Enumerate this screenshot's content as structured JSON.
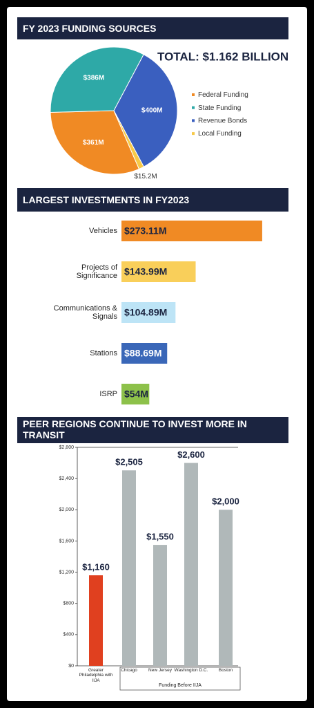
{
  "chart_data": [
    {
      "type": "pie",
      "title": "FY 2023 FUNDING SOURCES",
      "annotation": "TOTAL: $1.162 BILLION",
      "categories": [
        "Federal Funding",
        "State Funding",
        "Revenue Bonds",
        "Local Funding"
      ],
      "values": [
        361,
        386,
        400,
        15.2
      ],
      "value_labels": [
        "$361M",
        "$386M",
        "$400M",
        "$15.2M"
      ],
      "colors": [
        "#f08a24",
        "#2ea9a7",
        "#3a5fbf",
        "#f7c948"
      ]
    },
    {
      "type": "hbar",
      "title": "LARGEST INVESTMENTS IN FY2023",
      "categories": [
        "Vehicles",
        "Projects of Significance",
        "Communications & Signals",
        "Stations",
        "ISRP"
      ],
      "values": [
        273.11,
        143.99,
        104.89,
        88.69,
        54
      ],
      "value_labels": [
        "$273.11M",
        "$143.99M",
        "$104.89M",
        "$88.69M",
        "$54M"
      ],
      "colors": [
        "#f08a24",
        "#f9cf5a",
        "#bde4f6",
        "#3a67b8",
        "#8dc14a"
      ],
      "xlim": [
        0,
        300
      ]
    },
    {
      "type": "bar",
      "title": "PEER REGIONS CONTINUE TO INVEST MORE IN TRANSIT",
      "categories": [
        "Greater Philadelphia with IIJA",
        "Chicago",
        "New Jersey",
        "Washington D.C.",
        "Boston"
      ],
      "values": [
        1160,
        2505,
        1550,
        2600,
        2000
      ],
      "value_labels": [
        "$1,160",
        "$2,505",
        "$1,550",
        "$2,600",
        "$2,000"
      ],
      "colors": [
        "#e0401f",
        "#b0b8b9",
        "#b0b8b9",
        "#b0b8b9",
        "#b0b8b9"
      ],
      "group_label": "Funding Before IIJA",
      "ylim": [
        0,
        2800
      ],
      "yticks": [
        {
          "value": 0,
          "label": "$0"
        },
        {
          "value": 400,
          "label": "$400"
        },
        {
          "value": 800,
          "label": "$800"
        },
        {
          "value": 1200,
          "label": "$1,200"
        },
        {
          "value": 1600,
          "label": "$1,600"
        },
        {
          "value": 2000,
          "label": "$2,000"
        },
        {
          "value": 2400,
          "label": "$2,400"
        },
        {
          "value": 2800,
          "label": "$2,800"
        }
      ]
    }
  ]
}
